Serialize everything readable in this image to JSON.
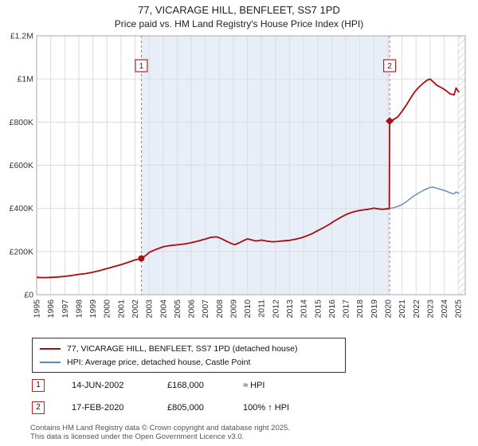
{
  "title": "77, VICARAGE HILL, BENFLEET, SS7 1PD",
  "subtitle": "Price paid vs. HM Land Registry's House Price Index (HPI)",
  "chart_data": {
    "type": "line",
    "xlim": [
      1995,
      2025.5
    ],
    "ylim": [
      0,
      1200
    ],
    "x_ticks": [
      1995,
      1996,
      1997,
      1998,
      1999,
      2000,
      2001,
      2002,
      2003,
      2004,
      2005,
      2006,
      2007,
      2008,
      2009,
      2010,
      2011,
      2012,
      2013,
      2014,
      2015,
      2016,
      2017,
      2018,
      2019,
      2020,
      2021,
      2022,
      2023,
      2024,
      2025
    ],
    "y_ticks": [
      {
        "v": 0,
        "label": "£0"
      },
      {
        "v": 200,
        "label": "£200K"
      },
      {
        "v": 400,
        "label": "£400K"
      },
      {
        "v": 600,
        "label": "£600K"
      },
      {
        "v": 800,
        "label": "£800K"
      },
      {
        "v": 1000,
        "label": "£1M"
      },
      {
        "v": 1200,
        "label": "£1.2M"
      }
    ],
    "colors": {
      "price": "#aa0e0e",
      "hpi": "#5e87b5",
      "dash": "#d46a6a",
      "shade": "#e8eef8",
      "hatch": "#c9c9c9",
      "grid": "#dcdcdc"
    },
    "shaded_region": [
      2002.45,
      2020.12
    ],
    "hatch_region": [
      2025.0,
      2025.5
    ],
    "sales": [
      {
        "num": "1",
        "x": 2002.45,
        "value": 168,
        "marker": "circle"
      },
      {
        "num": "2",
        "x": 2020.12,
        "value": 805,
        "marker": "diamond"
      }
    ],
    "series": [
      {
        "name": "77, VICARAGE HILL, BENFLEET, SS7 1PD (detached house)",
        "color": "#aa0e0e",
        "width": 1.8,
        "points": [
          [
            1995,
            80
          ],
          [
            1995.5,
            79
          ],
          [
            1996,
            80
          ],
          [
            1996.5,
            82
          ],
          [
            1997,
            85
          ],
          [
            1997.5,
            89
          ],
          [
            1998,
            94
          ],
          [
            1998.5,
            98
          ],
          [
            1999,
            104
          ],
          [
            1999.5,
            112
          ],
          [
            2000,
            121
          ],
          [
            2000.5,
            130
          ],
          [
            2001,
            139
          ],
          [
            2001.5,
            150
          ],
          [
            2002,
            161
          ],
          [
            2002.45,
            168
          ],
          [
            2002.8,
            183
          ],
          [
            2003,
            196
          ],
          [
            2003.5,
            210
          ],
          [
            2004,
            222
          ],
          [
            2004.5,
            228
          ],
          [
            2005,
            231
          ],
          [
            2005.5,
            235
          ],
          [
            2006,
            241
          ],
          [
            2006.5,
            249
          ],
          [
            2007,
            258
          ],
          [
            2007.4,
            266
          ],
          [
            2007.8,
            268
          ],
          [
            2008.1,
            261
          ],
          [
            2008.5,
            248
          ],
          [
            2008.9,
            236
          ],
          [
            2009.1,
            232
          ],
          [
            2009.4,
            240
          ],
          [
            2009.7,
            250
          ],
          [
            2010,
            259
          ],
          [
            2010.3,
            254
          ],
          [
            2010.6,
            249
          ],
          [
            2011,
            253
          ],
          [
            2011.4,
            248
          ],
          [
            2011.8,
            245
          ],
          [
            2012.2,
            247
          ],
          [
            2012.6,
            250
          ],
          [
            2013,
            252
          ],
          [
            2013.4,
            257
          ],
          [
            2013.8,
            263
          ],
          [
            2014.2,
            272
          ],
          [
            2014.6,
            283
          ],
          [
            2015,
            297
          ],
          [
            2015.4,
            310
          ],
          [
            2015.8,
            325
          ],
          [
            2016.2,
            342
          ],
          [
            2016.6,
            357
          ],
          [
            2017,
            371
          ],
          [
            2017.4,
            381
          ],
          [
            2017.8,
            388
          ],
          [
            2018.2,
            393
          ],
          [
            2018.6,
            396
          ],
          [
            2019,
            401
          ],
          [
            2019.3,
            398
          ],
          [
            2019.6,
            396
          ],
          [
            2019.9,
            398
          ],
          [
            2020.1,
            400
          ],
          [
            2020.12,
            805
          ],
          [
            2020.4,
            812
          ],
          [
            2020.7,
            824
          ],
          [
            2021,
            850
          ],
          [
            2021.3,
            878
          ],
          [
            2021.6,
            910
          ],
          [
            2021.9,
            940
          ],
          [
            2022.2,
            962
          ],
          [
            2022.5,
            980
          ],
          [
            2022.8,
            995
          ],
          [
            2023,
            1000
          ],
          [
            2023.2,
            988
          ],
          [
            2023.5,
            970
          ],
          [
            2023.8,
            960
          ],
          [
            2024.1,
            948
          ],
          [
            2024.4,
            932
          ],
          [
            2024.7,
            926
          ],
          [
            2024.85,
            958
          ],
          [
            2025.05,
            938
          ]
        ]
      },
      {
        "name": "HPI: Average price, detached house, Castle Point",
        "color": "#5e87b5",
        "width": 1.4,
        "points": [
          [
            1995,
            80
          ],
          [
            1995.5,
            79
          ],
          [
            1996,
            80
          ],
          [
            1996.5,
            82
          ],
          [
            1997,
            85
          ],
          [
            1997.5,
            89
          ],
          [
            1998,
            94
          ],
          [
            1998.5,
            98
          ],
          [
            1999,
            104
          ],
          [
            1999.5,
            112
          ],
          [
            2000,
            121
          ],
          [
            2000.5,
            130
          ],
          [
            2001,
            139
          ],
          [
            2001.5,
            150
          ],
          [
            2002,
            161
          ],
          [
            2002.45,
            168
          ],
          [
            2002.8,
            183
          ],
          [
            2003,
            196
          ],
          [
            2003.5,
            210
          ],
          [
            2004,
            222
          ],
          [
            2004.5,
            228
          ],
          [
            2005,
            231
          ],
          [
            2005.5,
            235
          ],
          [
            2006,
            241
          ],
          [
            2006.5,
            249
          ],
          [
            2007,
            258
          ],
          [
            2007.4,
            266
          ],
          [
            2007.8,
            268
          ],
          [
            2008.1,
            261
          ],
          [
            2008.5,
            248
          ],
          [
            2008.9,
            236
          ],
          [
            2009.1,
            232
          ],
          [
            2009.4,
            240
          ],
          [
            2009.7,
            250
          ],
          [
            2010,
            259
          ],
          [
            2010.3,
            254
          ],
          [
            2010.6,
            249
          ],
          [
            2011,
            253
          ],
          [
            2011.4,
            248
          ],
          [
            2011.8,
            245
          ],
          [
            2012.2,
            247
          ],
          [
            2012.6,
            250
          ],
          [
            2013,
            252
          ],
          [
            2013.4,
            257
          ],
          [
            2013.8,
            263
          ],
          [
            2014.2,
            272
          ],
          [
            2014.6,
            283
          ],
          [
            2015,
            297
          ],
          [
            2015.4,
            310
          ],
          [
            2015.8,
            325
          ],
          [
            2016.2,
            342
          ],
          [
            2016.6,
            357
          ],
          [
            2017,
            371
          ],
          [
            2017.4,
            381
          ],
          [
            2017.8,
            388
          ],
          [
            2018.2,
            393
          ],
          [
            2018.6,
            396
          ],
          [
            2019,
            401
          ],
          [
            2019.3,
            398
          ],
          [
            2019.6,
            396
          ],
          [
            2019.9,
            398
          ],
          [
            2020.1,
            400
          ],
          [
            2020.4,
            403
          ],
          [
            2020.7,
            409
          ],
          [
            2021,
            418
          ],
          [
            2021.3,
            430
          ],
          [
            2021.6,
            446
          ],
          [
            2021.9,
            460
          ],
          [
            2022.2,
            472
          ],
          [
            2022.5,
            483
          ],
          [
            2022.8,
            492
          ],
          [
            2023,
            497
          ],
          [
            2023.2,
            499
          ],
          [
            2023.5,
            493
          ],
          [
            2023.8,
            487
          ],
          [
            2024.1,
            481
          ],
          [
            2024.4,
            473
          ],
          [
            2024.7,
            467
          ],
          [
            2024.85,
            476
          ],
          [
            2025.05,
            470
          ]
        ]
      }
    ]
  },
  "legend": {
    "price": "77, VICARAGE HILL, BENFLEET, SS7 1PD (detached house)",
    "hpi": "HPI: Average price, detached house, Castle Point"
  },
  "annotations": [
    {
      "num": "1",
      "date": "14-JUN-2002",
      "price": "£168,000",
      "hpi": "≈ HPI"
    },
    {
      "num": "2",
      "date": "17-FEB-2020",
      "price": "£805,000",
      "hpi": "100% ↑ HPI"
    }
  ],
  "footer": {
    "line1": "Contains HM Land Registry data © Crown copyright and database right 2025.",
    "line2": "This data is licensed under the Open Government Licence v3.0."
  }
}
